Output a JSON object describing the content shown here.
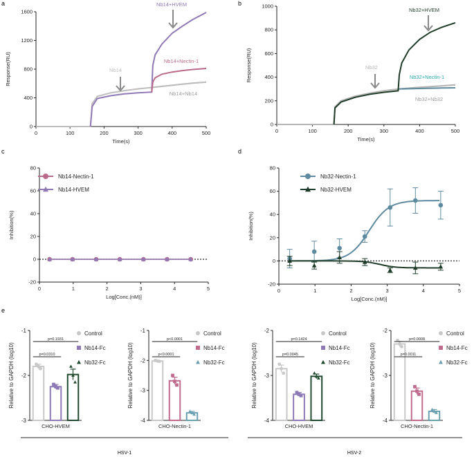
{
  "colors": {
    "nb14_hvem": "#8f78b4",
    "nb14_nectin": "#b86a8a",
    "nb14_nb14": "#bdbdbd",
    "nb32_hvem": "#1e3b28",
    "nb32_nectin": "#5e8aa0",
    "nb32_nb32": "#b5b5b5",
    "axis": "#222222",
    "arrow": "#888888",
    "control": "#c8c8c8",
    "nb14_fc_purple": "#8c79b6",
    "nb14_fc_pink": "#c06a8e",
    "nb32_fc_green": "#1f4a2e",
    "nb32_fc_teal": "#6a9fb0"
  },
  "chart_data": [
    {
      "panel": "a",
      "type": "line",
      "xlabel": "Time(s)",
      "ylabel": "Response(RU)",
      "xlim": [
        0,
        500
      ],
      "ylim": [
        0,
        1600
      ],
      "xticks": [
        0,
        100,
        200,
        300,
        400,
        500
      ],
      "yticks": [
        0,
        400,
        800,
        1200,
        1600
      ],
      "series": [
        {
          "name": "Nb14",
          "color": "#bdbdbd",
          "x": [
            0,
            160,
            165,
            180,
            220,
            260,
            300,
            340,
            380,
            420,
            460,
            500
          ],
          "y": [
            0,
            0,
            320,
            420,
            470,
            500,
            525,
            545,
            565,
            585,
            605,
            620
          ]
        },
        {
          "name": "Nb14+Nb14",
          "color": "#bdbdbd",
          "x": [
            340,
            380,
            420,
            460,
            500
          ],
          "y": [
            545,
            565,
            585,
            605,
            620
          ]
        },
        {
          "name": "Nb14+HVEM",
          "color": "#8f78b4",
          "x": [
            160,
            165,
            180,
            220,
            260,
            300,
            340,
            343,
            350,
            370,
            400,
            430,
            460,
            500
          ],
          "y": [
            0,
            280,
            390,
            430,
            455,
            470,
            480,
            850,
            1000,
            1150,
            1300,
            1400,
            1490,
            1590
          ]
        },
        {
          "name": "Nb14+Nectin-1",
          "color": "#b86a8a",
          "x": [
            340,
            343,
            350,
            370,
            400,
            430,
            460,
            500
          ],
          "y": [
            480,
            620,
            680,
            730,
            760,
            780,
            795,
            810
          ]
        }
      ],
      "annotations": [
        "Nb14+HVEM",
        "Nb14+Nectin-1",
        "Nb14",
        "Nb14+Nb14"
      ]
    },
    {
      "panel": "b",
      "type": "line",
      "xlabel": "Time(s)",
      "ylabel": "Response(RU)",
      "xlim": [
        0,
        500
      ],
      "ylim": [
        0,
        1000
      ],
      "xticks": [
        0,
        100,
        200,
        300,
        400,
        500
      ],
      "yticks": [
        0,
        200,
        400,
        600,
        800,
        1000
      ],
      "series": [
        {
          "name": "Nb32",
          "color": "#b5b5b5",
          "x": [
            0,
            160,
            163,
            180,
            220,
            260,
            300,
            340,
            380,
            420,
            460,
            500
          ],
          "y": [
            0,
            0,
            150,
            200,
            240,
            265,
            285,
            300,
            310,
            318,
            326,
            335
          ]
        },
        {
          "name": "Nb32+Nb32",
          "color": "#b5b5b5",
          "x": [
            340,
            380,
            420,
            460,
            500
          ],
          "y": [
            300,
            310,
            318,
            326,
            335
          ]
        },
        {
          "name": "Nb32+Nectin-1",
          "color": "#5e8aa0",
          "x": [
            340,
            380,
            420,
            460,
            500
          ],
          "y": [
            300,
            303,
            306,
            308,
            310
          ]
        },
        {
          "name": "Nb32+HVEM",
          "color": "#1e3b28",
          "x": [
            160,
            163,
            180,
            220,
            260,
            300,
            340,
            343,
            350,
            370,
            400,
            430,
            460,
            500
          ],
          "y": [
            0,
            140,
            190,
            230,
            255,
            272,
            285,
            420,
            520,
            630,
            720,
            780,
            820,
            860
          ]
        }
      ],
      "annotations": [
        "Nb32+HVEM",
        "Nb32+Nectin-1",
        "Nb32",
        "Nb32+Nb32"
      ]
    },
    {
      "panel": "c",
      "type": "line",
      "xlabel": "Log[Conc.(nM)]",
      "ylabel": "Inhibition(%)",
      "xlim": [
        0,
        5
      ],
      "ylim": [
        -20,
        80
      ],
      "xticks": [
        0,
        1,
        2,
        3,
        4,
        5
      ],
      "yticks": [
        -20,
        0,
        20,
        40,
        60,
        80
      ],
      "x": [
        0.3,
        0.98,
        1.68,
        2.38,
        3.08,
        3.78,
        4.48
      ],
      "series": [
        {
          "name": "Nb14-Nectin-1",
          "color": "#b86a8a",
          "marker": "circle",
          "values": [
            0,
            0,
            0,
            0,
            0,
            0,
            0
          ]
        },
        {
          "name": "Nb14-HVEM",
          "color": "#8f78b4",
          "marker": "triangle",
          "values": [
            0,
            0,
            0,
            0,
            0,
            0,
            0
          ]
        }
      ]
    },
    {
      "panel": "d",
      "type": "line",
      "xlabel": "Log[Conc.(nM)]",
      "ylabel": "Inhibition(%)",
      "xlim": [
        0,
        5
      ],
      "ylim": [
        -20,
        80
      ],
      "xticks": [
        0,
        1,
        2,
        3,
        4,
        5
      ],
      "yticks": [
        -20,
        0,
        20,
        40,
        60,
        80
      ],
      "x": [
        0.3,
        0.98,
        1.68,
        2.38,
        3.08,
        3.78,
        4.48
      ],
      "series": [
        {
          "name": "Nb32-Nectin-1",
          "color": "#5e8aa0",
          "marker": "circle",
          "values": [
            2,
            8,
            11,
            21,
            46,
            52,
            48
          ],
          "errors": [
            8,
            9,
            8,
            5,
            16,
            11,
            12
          ],
          "fit": {
            "bottom": 0,
            "top": 52,
            "logec50": 2.5,
            "hill": 1.6
          }
        },
        {
          "name": "Nb32-HVEM",
          "color": "#1e3b28",
          "marker": "triangle",
          "values": [
            0,
            -4,
            3,
            -1,
            -8,
            -6,
            -5
          ],
          "errors": [
            4,
            3,
            5,
            3,
            2,
            5,
            3
          ],
          "fit": {
            "bottom": 0,
            "top": -6,
            "logec50": 2.8,
            "hill": 2
          }
        }
      ]
    },
    {
      "panel": "e1",
      "type": "bar",
      "title": "",
      "xlabel": "CHO-HVEM",
      "ylabel": "Relative to GAPDH (log10)",
      "ylim": [
        -3,
        -1
      ],
      "yticks": [
        -3,
        -2,
        -1
      ],
      "categories": [
        "Control",
        "Nb14-Fc",
        "Nb32-Fc"
      ],
      "values": [
        -1.8,
        -2.25,
        -1.98
      ],
      "errors": [
        0.05,
        0.05,
        0.12
      ],
      "points": [
        [
          -1.75,
          -1.8,
          -1.85
        ],
        [
          -2.2,
          -2.25,
          -2.28
        ],
        [
          -1.8,
          -2.0,
          -2.15
        ]
      ],
      "markers": [
        "circle",
        "square",
        "triangle"
      ],
      "colors": [
        "#c8c8c8",
        "#8c79b6",
        "#1f4a2e"
      ],
      "pvalues": [
        {
          "label": "p=0.1931",
          "from": 0,
          "to": 2
        },
        {
          "label": "p=0.0310",
          "from": 0,
          "to": 1
        }
      ]
    },
    {
      "panel": "e2",
      "type": "bar",
      "xlabel": "CHO-Nectin-1",
      "ylabel": "Relative to GAPDH (log10)",
      "ylim": [
        -4,
        -1
      ],
      "yticks": [
        -4,
        -3,
        -2,
        -1
      ],
      "categories": [
        "Control",
        "Nb14-Fc",
        "Nb32-Fc"
      ],
      "values": [
        -2.02,
        -2.68,
        -3.75
      ],
      "errors": [
        0.02,
        0.12,
        0.05
      ],
      "points": [
        [
          -2.0,
          -2.02,
          -2.03
        ],
        [
          -2.5,
          -2.7,
          -2.82
        ],
        [
          -3.7,
          -3.75,
          -3.8
        ]
      ],
      "markers": [
        "circle",
        "square",
        "triangle"
      ],
      "colors": [
        "#c8c8c8",
        "#c06a8e",
        "#6a9fb0"
      ],
      "pvalues": [
        {
          "label": "p<0.0001",
          "from": 0,
          "to": 2
        },
        {
          "label": "p<0.0001",
          "from": 0,
          "to": 1
        }
      ]
    },
    {
      "panel": "e3",
      "type": "bar",
      "xlabel": "CHO-HVEM",
      "ylabel": "Relative to GAPDH (log10)",
      "ylim": [
        -4,
        -2
      ],
      "yticks": [
        -4,
        -3,
        -2
      ],
      "categories": [
        "Control",
        "Nb14-Fc",
        "Nb32-Fc"
      ],
      "values": [
        -2.85,
        -3.42,
        -3.02
      ],
      "errors": [
        0.08,
        0.04,
        0.05
      ],
      "points": [
        [
          -2.75,
          -2.85,
          -2.95
        ],
        [
          -3.38,
          -3.42,
          -3.45
        ],
        [
          -2.95,
          -3.02,
          -3.06
        ]
      ],
      "markers": [
        "circle",
        "square",
        "triangle"
      ],
      "colors": [
        "#c8c8c8",
        "#8c79b6",
        "#1f4a2e"
      ],
      "pvalues": [
        {
          "label": "p=0.1424",
          "from": 0,
          "to": 2
        },
        {
          "label": "p=0.0045",
          "from": 0,
          "to": 1
        }
      ]
    },
    {
      "panel": "e4",
      "type": "bar",
      "xlabel": "CHO-Nectin-1",
      "ylabel": "Relative to GAPDH (log10)",
      "ylim": [
        -4,
        -2
      ],
      "yticks": [
        -4,
        -3,
        -2
      ],
      "categories": [
        "Control",
        "Nb14-Fc",
        "Nb32-Fc"
      ],
      "values": [
        -2.3,
        -3.35,
        -3.8
      ],
      "errors": [
        0.06,
        0.07,
        0.04
      ],
      "points": [
        [
          -2.22,
          -2.3,
          -2.36
        ],
        [
          -3.25,
          -3.35,
          -3.42
        ],
        [
          -3.76,
          -3.8,
          -3.83
        ]
      ],
      "markers": [
        "circle",
        "square",
        "triangle"
      ],
      "colors": [
        "#c8c8c8",
        "#c06a8e",
        "#6a9fb0"
      ],
      "pvalues": [
        {
          "label": "p=0.0008",
          "from": 0,
          "to": 2
        },
        {
          "label": "p=0.0011",
          "from": 0,
          "to": 1
        }
      ]
    }
  ],
  "panel_labels": {
    "a": "a",
    "b": "b",
    "c": "c",
    "d": "d",
    "e": "e"
  },
  "groups": {
    "hsv1": "HSV-1",
    "hsv2": "HSV-2"
  }
}
